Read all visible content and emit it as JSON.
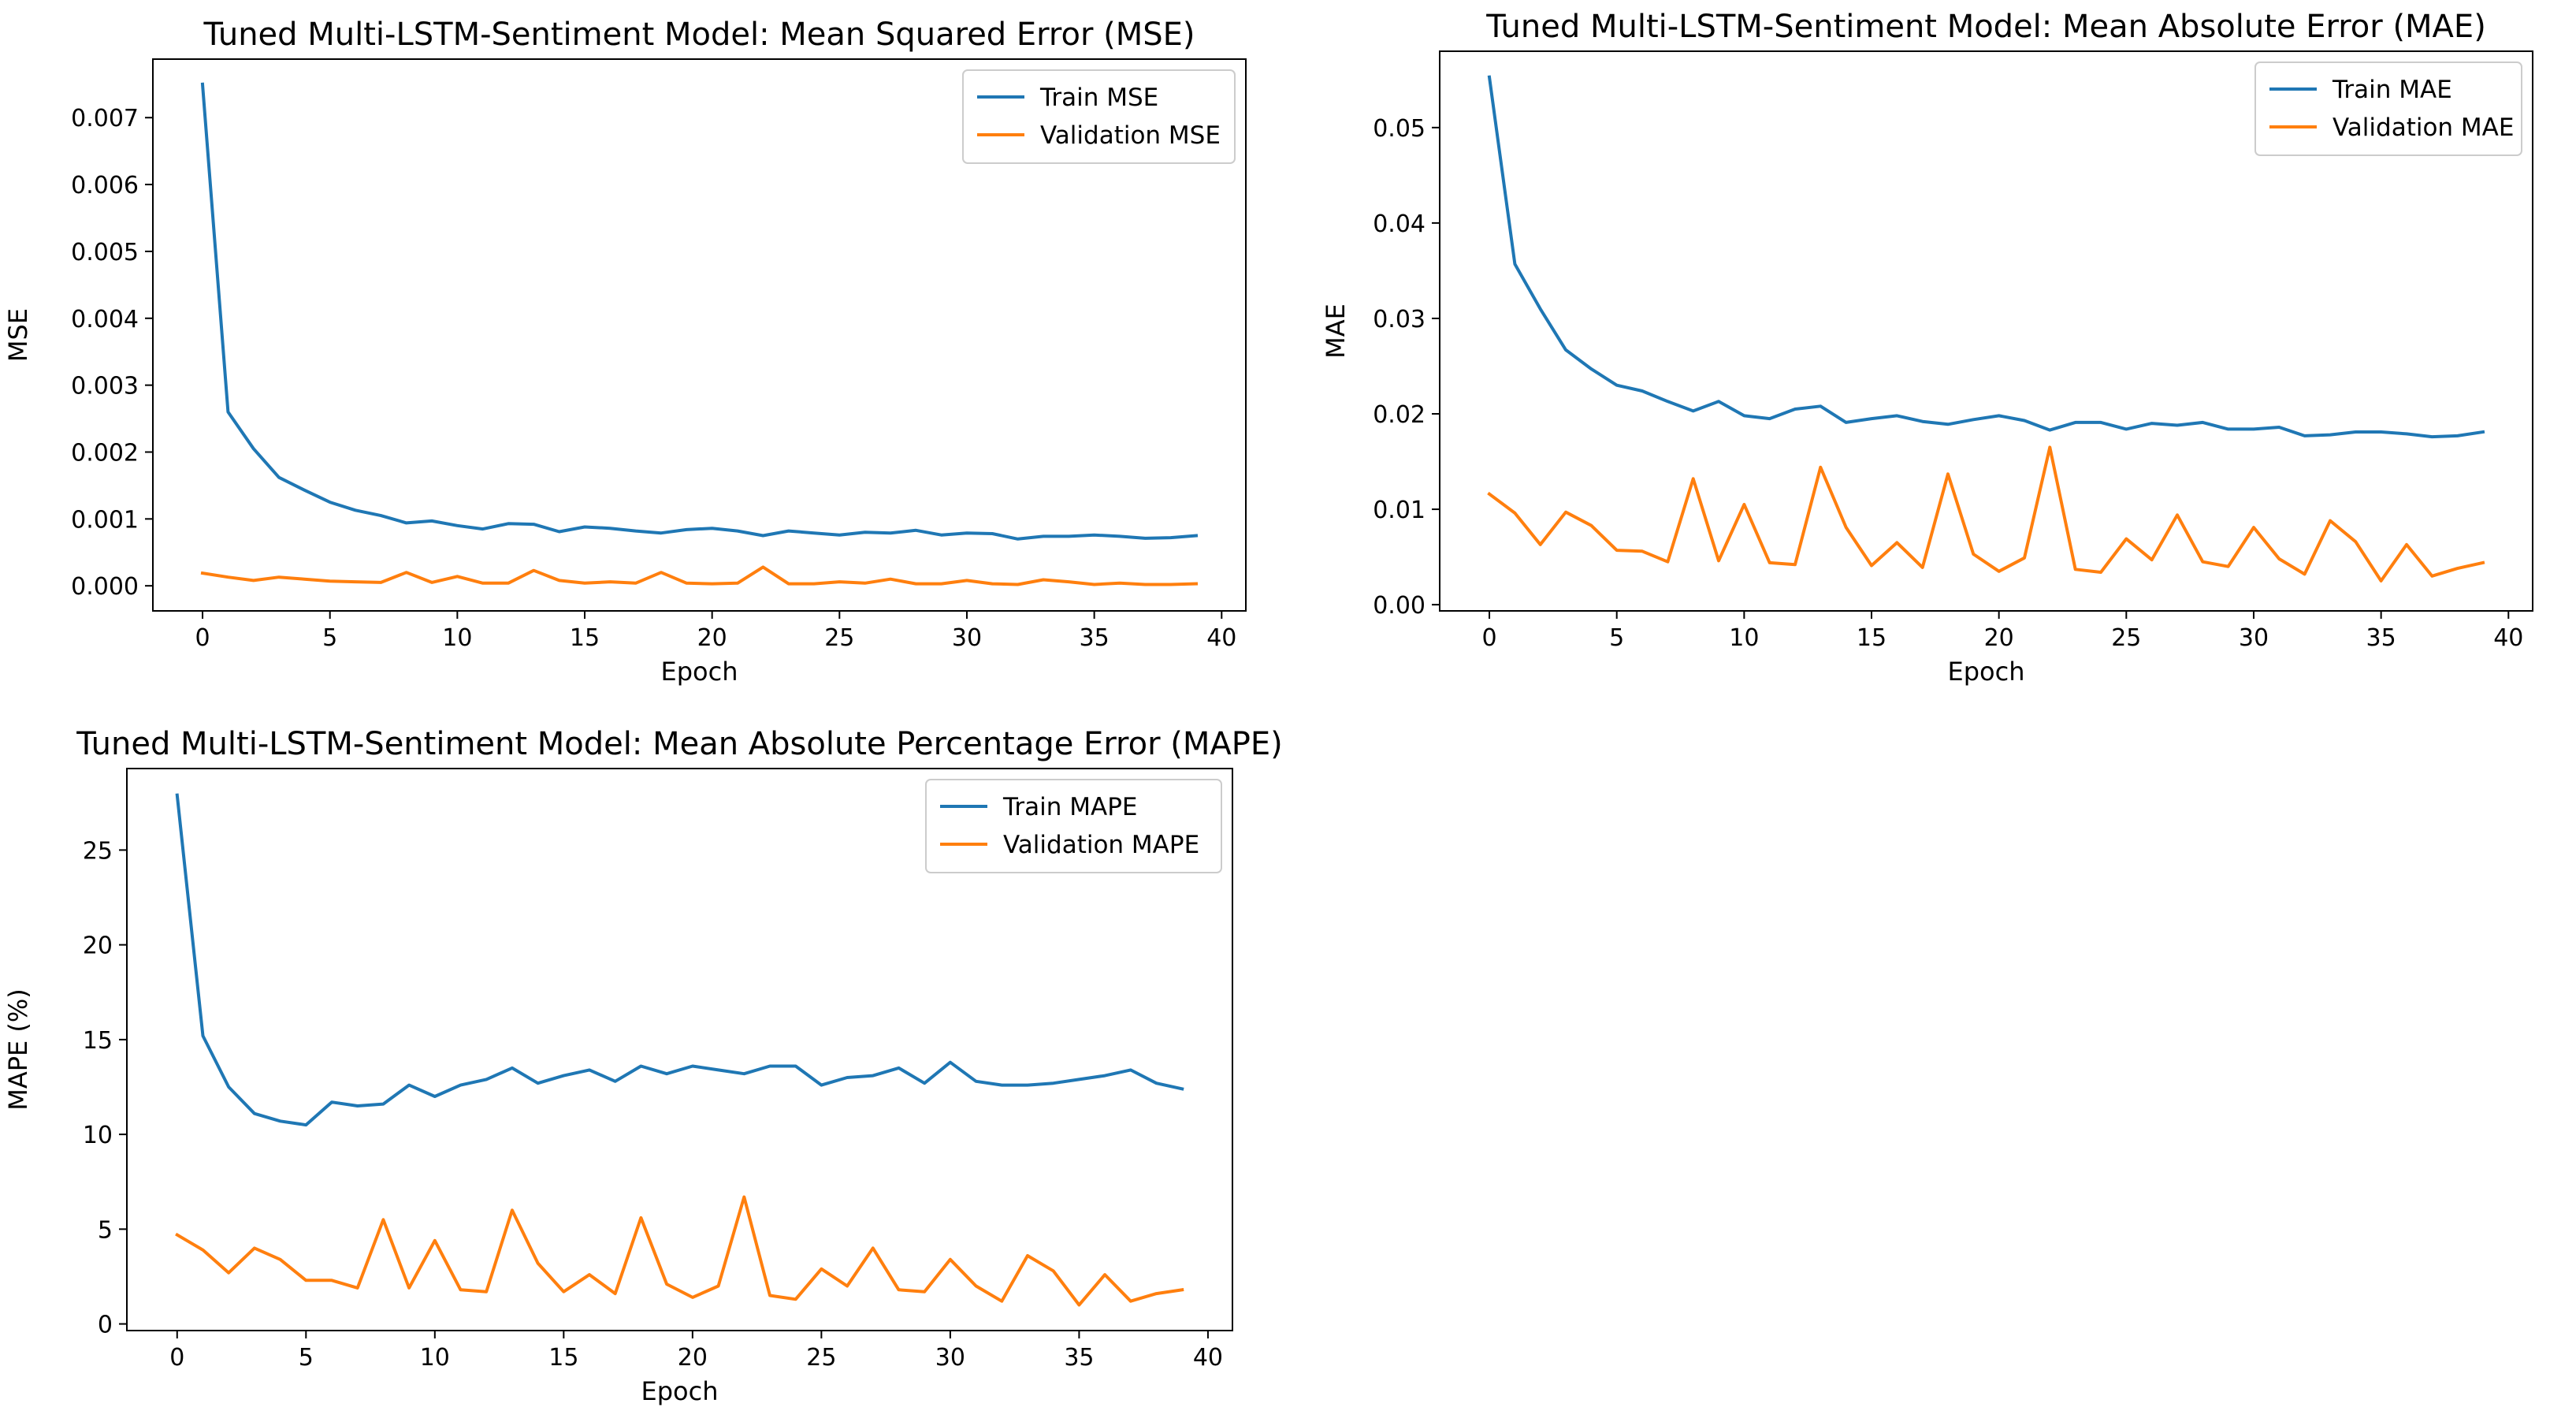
{
  "chart_data": [
    {
      "id": "mse",
      "type": "line",
      "title": "Tuned Multi-LSTM-Sentiment Model: Mean Squared Error (MSE)",
      "xlabel": "Epoch",
      "ylabel": "MSE",
      "xlim": [
        -1.95,
        40.95
      ],
      "ylim": [
        -0.000375,
        0.007875
      ],
      "xticks": [
        0,
        5,
        10,
        15,
        20,
        25,
        30,
        35,
        40
      ],
      "xtick_labels": [
        "0",
        "5",
        "10",
        "15",
        "20",
        "25",
        "30",
        "35",
        "40"
      ],
      "yticks": [
        0,
        0.001,
        0.002,
        0.003,
        0.004,
        0.005,
        0.006,
        0.007
      ],
      "ytick_labels": [
        "0.000",
        "0.001",
        "0.002",
        "0.003",
        "0.004",
        "0.005",
        "0.006",
        "0.007"
      ],
      "legend_position": "upper right",
      "x": [
        0,
        1,
        2,
        3,
        4,
        5,
        6,
        7,
        8,
        9,
        10,
        11,
        12,
        13,
        14,
        15,
        16,
        17,
        18,
        19,
        20,
        21,
        22,
        23,
        24,
        25,
        26,
        27,
        28,
        29,
        30,
        31,
        32,
        33,
        34,
        35,
        36,
        37,
        38,
        39
      ],
      "series": [
        {
          "name": "Train MSE",
          "color": "#1f77b4",
          "values": [
            0.0075,
            0.0026,
            0.00205,
            0.00162,
            0.00143,
            0.00125,
            0.00113,
            0.00105,
            0.00094,
            0.00097,
            0.0009,
            0.00085,
            0.00093,
            0.00092,
            0.00081,
            0.00088,
            0.00086,
            0.00082,
            0.00079,
            0.00084,
            0.00086,
            0.00082,
            0.00075,
            0.00082,
            0.00079,
            0.00076,
            0.0008,
            0.00079,
            0.00083,
            0.00076,
            0.00079,
            0.00078,
            0.0007,
            0.00074,
            0.00074,
            0.00076,
            0.00074,
            0.00071,
            0.00072,
            0.00075
          ]
        },
        {
          "name": "Validation MSE",
          "color": "#ff7f0e",
          "values": [
            0.00019,
            0.00013,
            8e-05,
            0.00013,
            0.0001,
            7e-05,
            6e-05,
            5e-05,
            0.0002,
            5e-05,
            0.00014,
            4e-05,
            4e-05,
            0.00023,
            8e-05,
            4e-05,
            6e-05,
            4e-05,
            0.0002,
            4e-05,
            3e-05,
            4e-05,
            0.00028,
            3e-05,
            3e-05,
            6e-05,
            4e-05,
            0.0001,
            3e-05,
            3e-05,
            8e-05,
            3e-05,
            2e-05,
            9e-05,
            6e-05,
            2e-05,
            4e-05,
            2e-05,
            2e-05,
            3e-05
          ]
        }
      ]
    },
    {
      "id": "mae",
      "type": "line",
      "title": "Tuned Multi-LSTM-Sentiment Model: Mean Absolute Error (MAE)",
      "xlabel": "Epoch",
      "ylabel": "MAE",
      "xlim": [
        -1.95,
        40.95
      ],
      "ylim": [
        -0.00065,
        0.058
      ],
      "xticks": [
        0,
        5,
        10,
        15,
        20,
        25,
        30,
        35,
        40
      ],
      "xtick_labels": [
        "0",
        "5",
        "10",
        "15",
        "20",
        "25",
        "30",
        "35",
        "40"
      ],
      "yticks": [
        0,
        0.01,
        0.02,
        0.03,
        0.04,
        0.05
      ],
      "ytick_labels": [
        "0.00",
        "0.01",
        "0.02",
        "0.03",
        "0.04",
        "0.05"
      ],
      "legend_position": "upper right",
      "x": [
        0,
        1,
        2,
        3,
        4,
        5,
        6,
        7,
        8,
        9,
        10,
        11,
        12,
        13,
        14,
        15,
        16,
        17,
        18,
        19,
        20,
        21,
        22,
        23,
        24,
        25,
        26,
        27,
        28,
        29,
        30,
        31,
        32,
        33,
        34,
        35,
        36,
        37,
        38,
        39
      ],
      "series": [
        {
          "name": "Train MAE",
          "color": "#1f77b4",
          "values": [
            0.0553,
            0.0357,
            0.031,
            0.0267,
            0.0247,
            0.023,
            0.0224,
            0.0213,
            0.0203,
            0.0213,
            0.0198,
            0.0195,
            0.0205,
            0.0208,
            0.0191,
            0.0195,
            0.0198,
            0.0192,
            0.0189,
            0.0194,
            0.0198,
            0.0193,
            0.0183,
            0.0191,
            0.0191,
            0.0184,
            0.019,
            0.0188,
            0.0191,
            0.0184,
            0.0184,
            0.0186,
            0.0177,
            0.0178,
            0.0181,
            0.0181,
            0.0179,
            0.0176,
            0.0177,
            0.0181
          ]
        },
        {
          "name": "Validation MAE",
          "color": "#ff7f0e",
          "values": [
            0.0116,
            0.0096,
            0.0063,
            0.0097,
            0.0083,
            0.0057,
            0.0056,
            0.0045,
            0.0132,
            0.0046,
            0.0105,
            0.0044,
            0.0042,
            0.0144,
            0.0081,
            0.0041,
            0.0065,
            0.0039,
            0.0137,
            0.0053,
            0.0035,
            0.0049,
            0.0165,
            0.0037,
            0.0034,
            0.0069,
            0.0047,
            0.0094,
            0.0045,
            0.004,
            0.0081,
            0.0048,
            0.0032,
            0.0088,
            0.0066,
            0.0025,
            0.0063,
            0.003,
            0.0038,
            0.0044
          ]
        }
      ]
    },
    {
      "id": "mape",
      "type": "line",
      "title": "Tuned Multi-LSTM-Sentiment Model: Mean Absolute Percentage Error (MAPE)",
      "xlabel": "Epoch",
      "ylabel": "MAPE (%)",
      "xlim": [
        -1.95,
        40.95
      ],
      "ylim": [
        -0.35,
        29.3
      ],
      "xticks": [
        0,
        5,
        10,
        15,
        20,
        25,
        30,
        35,
        40
      ],
      "xtick_labels": [
        "0",
        "5",
        "10",
        "15",
        "20",
        "25",
        "30",
        "35",
        "40"
      ],
      "yticks": [
        0,
        5,
        10,
        15,
        20,
        25
      ],
      "ytick_labels": [
        "0",
        "5",
        "10",
        "15",
        "20",
        "25"
      ],
      "legend_position": "upper right",
      "x": [
        0,
        1,
        2,
        3,
        4,
        5,
        6,
        7,
        8,
        9,
        10,
        11,
        12,
        13,
        14,
        15,
        16,
        17,
        18,
        19,
        20,
        21,
        22,
        23,
        24,
        25,
        26,
        27,
        28,
        29,
        30,
        31,
        32,
        33,
        34,
        35,
        36,
        37,
        38,
        39
      ],
      "series": [
        {
          "name": "Train MAPE",
          "color": "#1f77b4",
          "values": [
            27.9,
            15.2,
            12.5,
            11.1,
            10.7,
            10.5,
            11.7,
            11.5,
            11.6,
            12.6,
            12.0,
            12.6,
            12.9,
            13.5,
            12.7,
            13.1,
            13.4,
            12.8,
            13.6,
            13.2,
            13.6,
            13.4,
            13.2,
            13.6,
            13.6,
            12.6,
            13.0,
            13.1,
            13.5,
            12.7,
            13.8,
            12.8,
            12.6,
            12.6,
            12.7,
            12.9,
            13.1,
            13.4,
            12.7,
            12.4
          ]
        },
        {
          "name": "Validation MAPE",
          "color": "#ff7f0e",
          "values": [
            4.7,
            3.9,
            2.7,
            4.0,
            3.4,
            2.3,
            2.3,
            1.9,
            5.5,
            1.9,
            4.4,
            1.8,
            1.7,
            6.0,
            3.2,
            1.7,
            2.6,
            1.6,
            5.6,
            2.1,
            1.4,
            2.0,
            6.7,
            1.5,
            1.3,
            2.9,
            2.0,
            4.0,
            1.8,
            1.7,
            3.4,
            2.0,
            1.2,
            3.6,
            2.8,
            1.0,
            2.6,
            1.2,
            1.6,
            1.8
          ]
        }
      ]
    }
  ]
}
